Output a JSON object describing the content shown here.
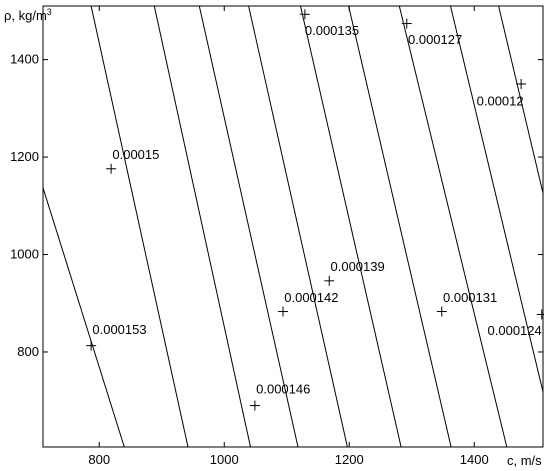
{
  "chart_data": {
    "type": "line",
    "title": "",
    "xlabel": "c, m/s",
    "ylabel_prefix": "ρ, kg/m",
    "ylabel_exp": "3",
    "xlim": [
      710,
      1510
    ],
    "ylim": [
      605,
      1510
    ],
    "xticks": [
      800,
      1000,
      1200,
      1400
    ],
    "yticks": [
      800,
      1000,
      1200,
      1400
    ],
    "grid": false,
    "series": [
      {
        "points": [
          [
            710,
            1137
          ],
          [
            840,
            605
          ]
        ]
      },
      {
        "points": [
          [
            787,
            1510
          ],
          [
            942,
            605
          ]
        ]
      },
      {
        "points": [
          [
            888,
            1510
          ],
          [
            1042,
            605
          ]
        ]
      },
      {
        "points": [
          [
            960,
            1510
          ],
          [
            1118,
            605
          ]
        ]
      },
      {
        "points": [
          [
            1039,
            1510
          ],
          [
            1197,
            605
          ]
        ]
      },
      {
        "points": [
          [
            1122,
            1510
          ],
          [
            1283,
            605
          ]
        ]
      },
      {
        "points": [
          [
            1199,
            1510
          ],
          [
            1363,
            605
          ]
        ]
      },
      {
        "points": [
          [
            1280,
            1510
          ],
          [
            1452,
            605
          ]
        ]
      },
      {
        "points": [
          [
            1362,
            1510
          ],
          [
            1510,
            718
          ]
        ]
      },
      {
        "points": [
          [
            1439,
            1510
          ],
          [
            1510,
            1126
          ]
        ]
      }
    ],
    "labeled_points": [
      {
        "label": "0.000153",
        "x": 787,
        "y": 813,
        "lx": 789,
        "ly": 837,
        "anchor": "start"
      },
      {
        "label": "0.00015",
        "x": 819,
        "y": 1176,
        "lx": 821,
        "ly": 1196,
        "anchor": "start"
      },
      {
        "label": "0.000146",
        "x": 1049,
        "y": 690,
        "lx": 1051,
        "ly": 715,
        "anchor": "start"
      },
      {
        "label": "0.000142",
        "x": 1094,
        "y": 883,
        "lx": 1096,
        "ly": 903,
        "anchor": "start"
      },
      {
        "label": "0.000139",
        "x": 1168,
        "y": 946,
        "lx": 1170,
        "ly": 966,
        "anchor": "start"
      },
      {
        "label": "0.000135",
        "x": 1129,
        "y": 1493,
        "lx": 1129,
        "ly": 1450,
        "anchor": "start"
      },
      {
        "label": "0.000131",
        "x": 1348,
        "y": 883,
        "lx": 1350,
        "ly": 903,
        "anchor": "start"
      },
      {
        "label": "0.000127",
        "x": 1292,
        "y": 1474,
        "lx": 1294,
        "ly": 1432,
        "anchor": "start"
      },
      {
        "label": "0.00012",
        "x": 1475,
        "y": 1350,
        "lx": 1479,
        "ly": 1306,
        "anchor": "end"
      },
      {
        "label": "0.000124",
        "x": 1508,
        "y": 877,
        "lx": 1508,
        "ly": 835,
        "anchor": "end"
      }
    ]
  }
}
